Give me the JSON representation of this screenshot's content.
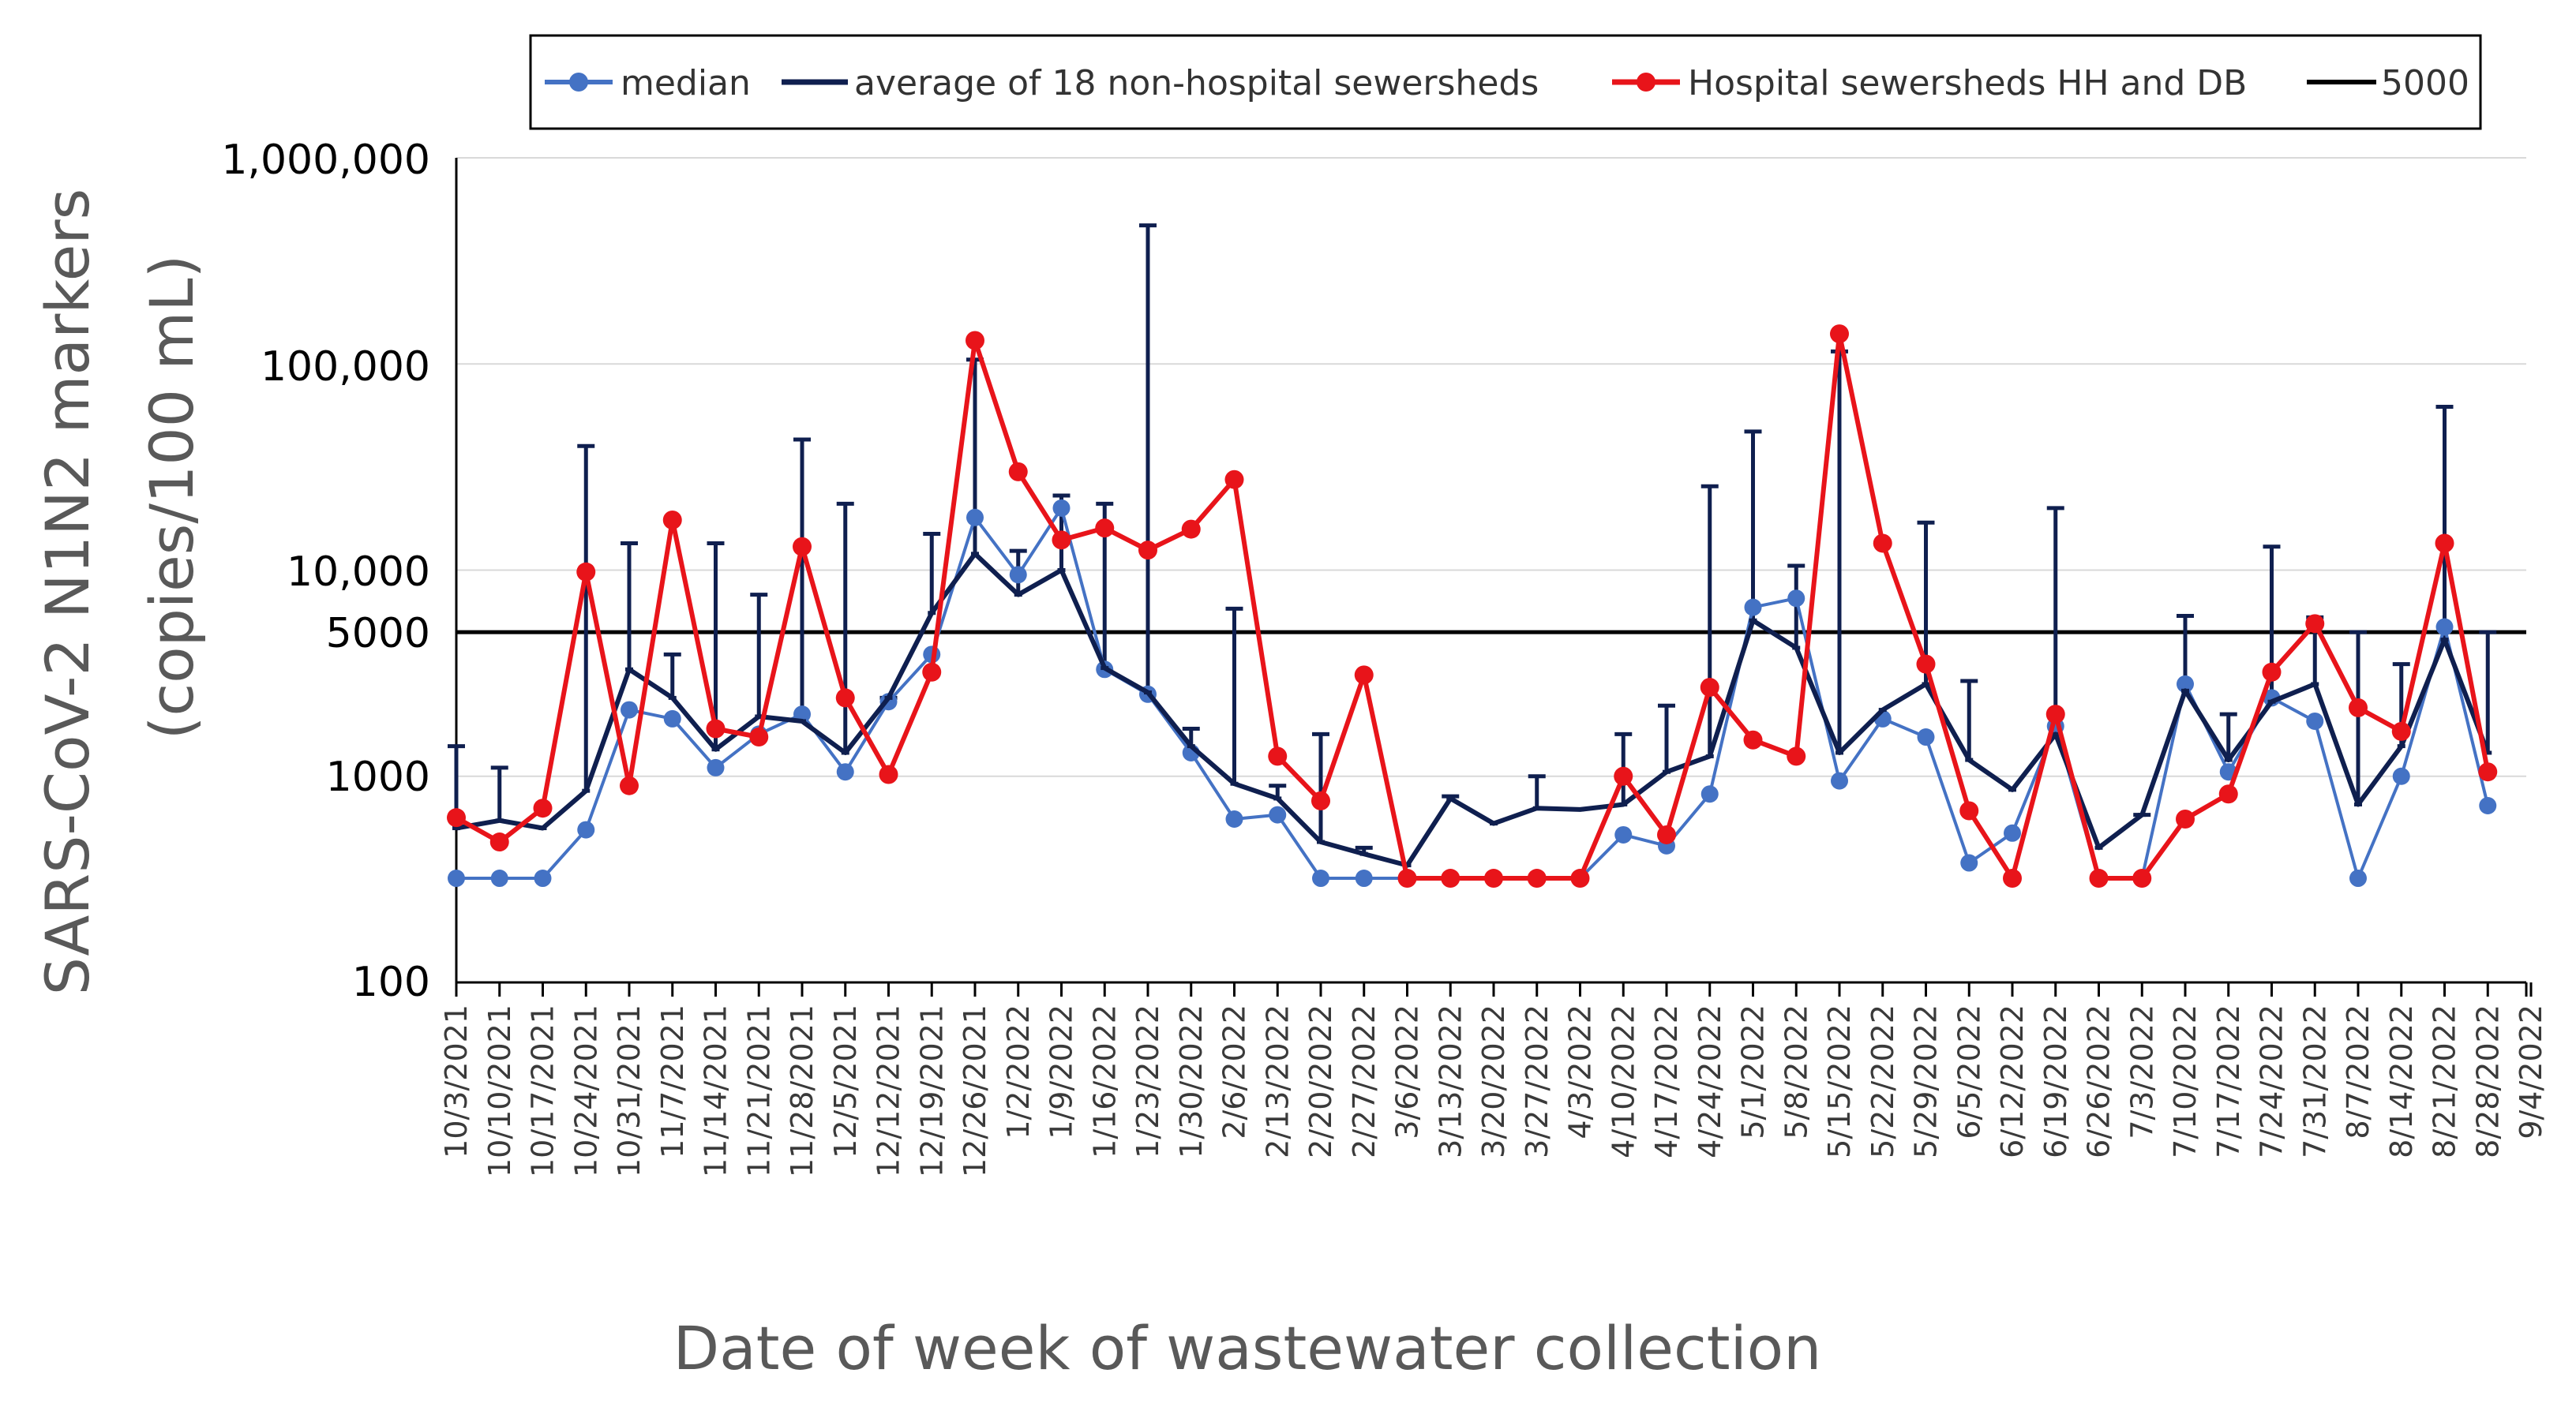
{
  "chart_data": {
    "type": "line",
    "yscale": "log",
    "ylim": [
      100,
      1000000
    ],
    "y_ticks": [
      100,
      1000,
      5000,
      10000,
      100000,
      1000000
    ],
    "y_tick_labels": [
      "100",
      "1000",
      "5000",
      "10,000",
      "100,000",
      "1,000,000"
    ],
    "ylabel_line1": "SARS-CoV-2 N1N2 markers",
    "ylabel_line2": "(copies/100 mL)",
    "xlabel": "Date of week of wastewater collection",
    "grid": "horizontal",
    "legend_position": "top",
    "categories": [
      "10/3/2021",
      "10/10/2021",
      "10/17/2021",
      "10/24/2021",
      "10/31/2021",
      "11/7/2021",
      "11/14/2021",
      "11/21/2021",
      "11/28/2021",
      "12/5/2021",
      "12/12/2021",
      "12/19/2021",
      "12/26/2021",
      "1/2/2022",
      "1/9/2022",
      "1/16/2022",
      "1/23/2022",
      "1/30/2022",
      "2/6/2022",
      "2/13/2022",
      "2/20/2022",
      "2/27/2022",
      "3/6/2022",
      "3/13/2022",
      "3/20/2022",
      "3/27/2022",
      "4/3/2022",
      "4/10/2022",
      "4/17/2022",
      "4/24/2022",
      "5/1/2022",
      "5/8/2022",
      "5/15/2022",
      "5/22/2022",
      "5/29/2022",
      "6/5/2022",
      "6/12/2022",
      "6/19/2022",
      "6/26/2022",
      "7/3/2022",
      "7/10/2022",
      "7/17/2022",
      "7/24/2022",
      "7/31/2022",
      "8/7/2022",
      "8/14/2022",
      "8/21/2022",
      "8/28/2022",
      "9/4/2022"
    ],
    "series": [
      {
        "name": "median",
        "color": "#4472c4",
        "marker": "circle",
        "values": [
          320,
          320,
          320,
          550,
          2100,
          1900,
          1100,
          1600,
          2000,
          1050,
          2300,
          3900,
          18000,
          9500,
          20000,
          3300,
          2500,
          1300,
          620,
          650,
          320,
          320,
          320,
          320,
          320,
          320,
          320,
          520,
          460,
          820,
          6600,
          7300,
          950,
          1900,
          1550,
          380,
          530,
          1750,
          320,
          320,
          2800,
          1050,
          2400,
          1850,
          320,
          1000,
          5300,
          720,
          null
        ]
      },
      {
        "name": "average of 18 non-hospital sewersheds",
        "color": "#0f1f4f",
        "marker": "dash",
        "values": [
          560,
          610,
          560,
          850,
          3300,
          2400,
          1350,
          1950,
          1850,
          1300,
          2400,
          6200,
          12000,
          7600,
          10000,
          3350,
          2550,
          1400,
          920,
          780,
          480,
          420,
          370,
          780,
          590,
          700,
          690,
          730,
          1050,
          1250,
          5700,
          4200,
          1300,
          2100,
          2800,
          1200,
          860,
          1600,
          450,
          650,
          2600,
          1200,
          2300,
          2800,
          730,
          1400,
          4600,
          1300,
          null
        ]
      },
      {
        "name": "Hospital sewersheds HH and DB",
        "color": "#e8141a",
        "marker": "circle",
        "values": [
          630,
          480,
          700,
          9800,
          900,
          17500,
          1700,
          1550,
          13000,
          2400,
          1020,
          3200,
          130000,
          30000,
          14000,
          16000,
          12500,
          15800,
          27500,
          1250,
          760,
          3100,
          320,
          320,
          320,
          320,
          320,
          1000,
          520,
          2700,
          1500,
          1250,
          140000,
          13500,
          3500,
          680,
          320,
          2000,
          320,
          320,
          620,
          820,
          3200,
          5500,
          2150,
          1650,
          13500,
          1050,
          null
        ]
      }
    ],
    "error_bars_upper": [
      1400,
      1100,
      null,
      40000,
      13500,
      3900,
      13500,
      7600,
      43000,
      21000,
      2400,
      15000,
      105000,
      12400,
      23000,
      21000,
      470000,
      1700,
      6500,
      900,
      1600,
      450,
      null,
      800,
      null,
      1000,
      null,
      1600,
      2200,
      25500,
      47000,
      10500,
      115000,
      null,
      17000,
      2900,
      null,
      20000,
      null,
      650,
      6000,
      2000,
      13000,
      5900,
      5000,
      3500,
      62000,
      5000,
      null
    ],
    "reference_line": {
      "value": 5000,
      "name": "5000",
      "color": "#000000"
    }
  }
}
